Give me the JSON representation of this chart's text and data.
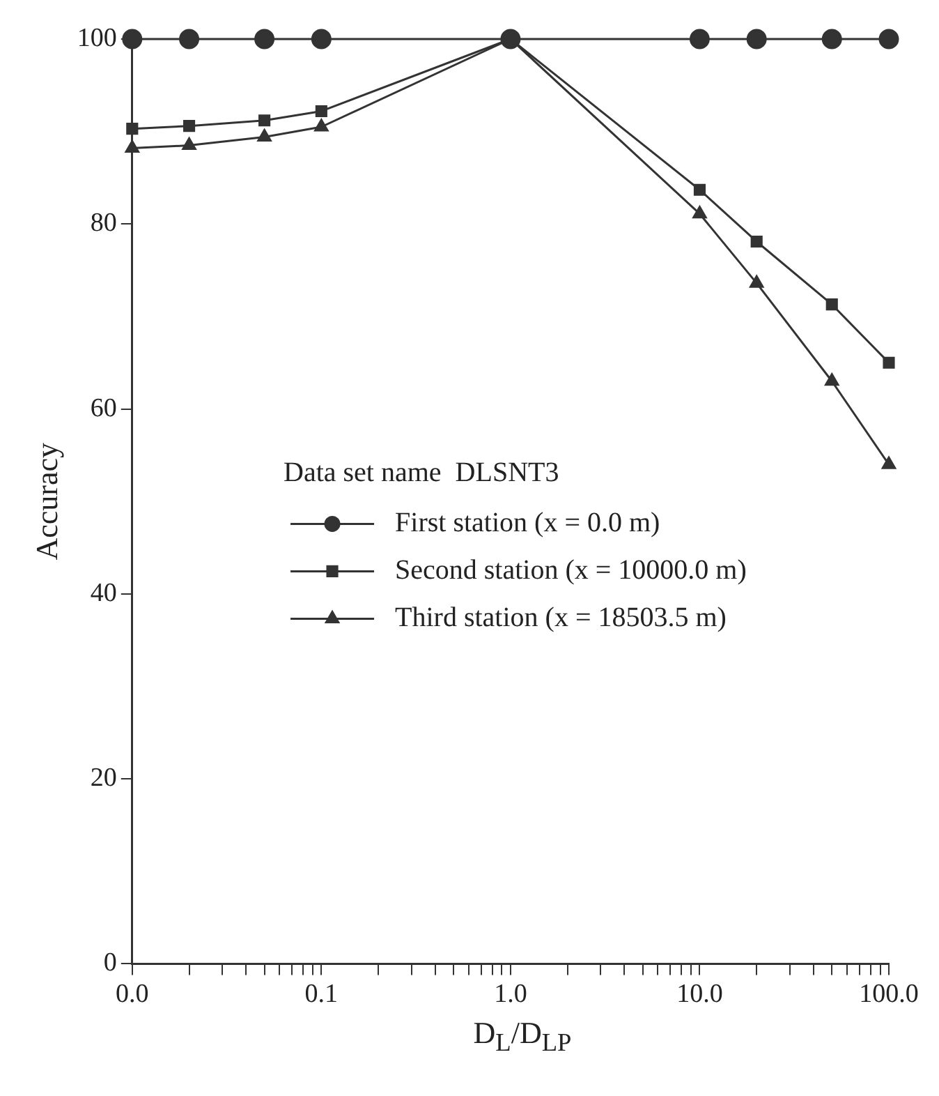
{
  "chart_data": {
    "type": "line",
    "xlabel": "D$_{L}$/D$_{LP}$",
    "ylabel": "Accuracy",
    "legend_title": "Data set name  DLSNT3",
    "legend": "right",
    "log": "x",
    "grid": false,
    "line_style": "solid",
    "x": [
      0.01,
      0.02,
      0.05,
      0.1,
      1,
      10,
      20,
      50,
      100
    ],
    "xlim": [
      0.01,
      100
    ],
    "xticks": [
      {
        "value": 0.01,
        "label": "0.0"
      },
      {
        "value": 0.02,
        "label": null
      },
      {
        "value": 0.03,
        "label": null
      },
      {
        "value": 0.04,
        "label": null
      },
      {
        "value": 0.05,
        "label": null
      },
      {
        "value": 0.06,
        "label": null
      },
      {
        "value": 0.07,
        "label": null
      },
      {
        "value": 0.08,
        "label": null
      },
      {
        "value": 0.09,
        "label": null
      },
      {
        "value": 0.1,
        "label": "0.1"
      },
      {
        "value": 0.2,
        "label": null
      },
      {
        "value": 0.3,
        "label": null
      },
      {
        "value": 0.4,
        "label": null
      },
      {
        "value": 0.5,
        "label": null
      },
      {
        "value": 0.6,
        "label": null
      },
      {
        "value": 0.7,
        "label": null
      },
      {
        "value": 0.8,
        "label": null
      },
      {
        "value": 0.9,
        "label": null
      },
      {
        "value": 1,
        "label": "1.0"
      },
      {
        "value": 2,
        "label": null
      },
      {
        "value": 3,
        "label": null
      },
      {
        "value": 4,
        "label": null
      },
      {
        "value": 5,
        "label": null
      },
      {
        "value": 6,
        "label": null
      },
      {
        "value": 7,
        "label": null
      },
      {
        "value": 8,
        "label": null
      },
      {
        "value": 9,
        "label": null
      },
      {
        "value": 10,
        "label": "10.0"
      },
      {
        "value": 20,
        "label": null
      },
      {
        "value": 30,
        "label": null
      },
      {
        "value": 40,
        "label": null
      },
      {
        "value": 50,
        "label": null
      },
      {
        "value": 60,
        "label": null
      },
      {
        "value": 70,
        "label": null
      },
      {
        "value": 80,
        "label": null
      },
      {
        "value": 90,
        "label": null
      },
      {
        "value": 100,
        "label": "100.0"
      }
    ],
    "ylim": [
      0,
      100
    ],
    "yticks": [
      0,
      20,
      40,
      60,
      80,
      100
    ],
    "series": [
      {
        "name": "First station (x = 0.0 m)",
        "color": "#333333",
        "marker": "circle",
        "values": [
          100,
          100,
          100,
          100,
          100,
          100,
          100,
          100,
          100
        ]
      },
      {
        "name": "Second station (x = 10000.0 m)",
        "color": "#333333",
        "marker": "square",
        "values": [
          90.3,
          90.6,
          91.2,
          92.2,
          100,
          83.7,
          78.1,
          71.3,
          65.0
        ]
      },
      {
        "name": "Third station (x = 18503.5 m)",
        "color": "#333333",
        "marker": "triangle",
        "values": [
          88.2,
          88.5,
          89.4,
          90.5,
          100,
          81.1,
          73.6,
          63.0,
          54.0
        ]
      }
    ]
  }
}
